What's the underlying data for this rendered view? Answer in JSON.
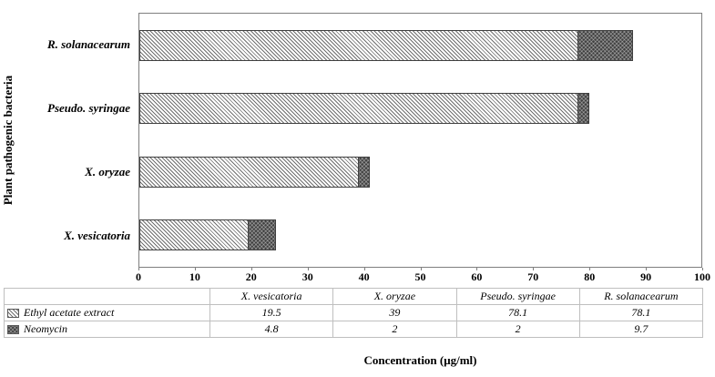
{
  "chart_data": {
    "type": "bar",
    "orientation": "horizontal",
    "stacked": true,
    "title": "",
    "xlabel": "Concentration (μg/ml)",
    "ylabel": "Plant pathogenic bacteria",
    "xlim": [
      0,
      100
    ],
    "xticks": [
      0,
      10,
      20,
      30,
      40,
      50,
      60,
      70,
      80,
      90,
      100
    ],
    "grid": false,
    "legend_position": "data-table-left",
    "data_table_shown": true,
    "categories": [
      "X. vesicatoria",
      "X. oryzae",
      "Pseudo. syringae",
      "R. solanacearum"
    ],
    "category_order_top_to_bottom": [
      "R. solanacearum",
      "Pseudo. syringae",
      "X. oryzae",
      "X. vesicatoria"
    ],
    "series": [
      {
        "name": "Ethyl acetate extract",
        "pattern": "diagonal-hatch",
        "values": [
          19.5,
          39,
          78.1,
          78.1
        ]
      },
      {
        "name": "Neomycin",
        "pattern": "dark-crosshatch",
        "values": [
          4.8,
          2,
          2,
          9.7
        ]
      }
    ]
  }
}
